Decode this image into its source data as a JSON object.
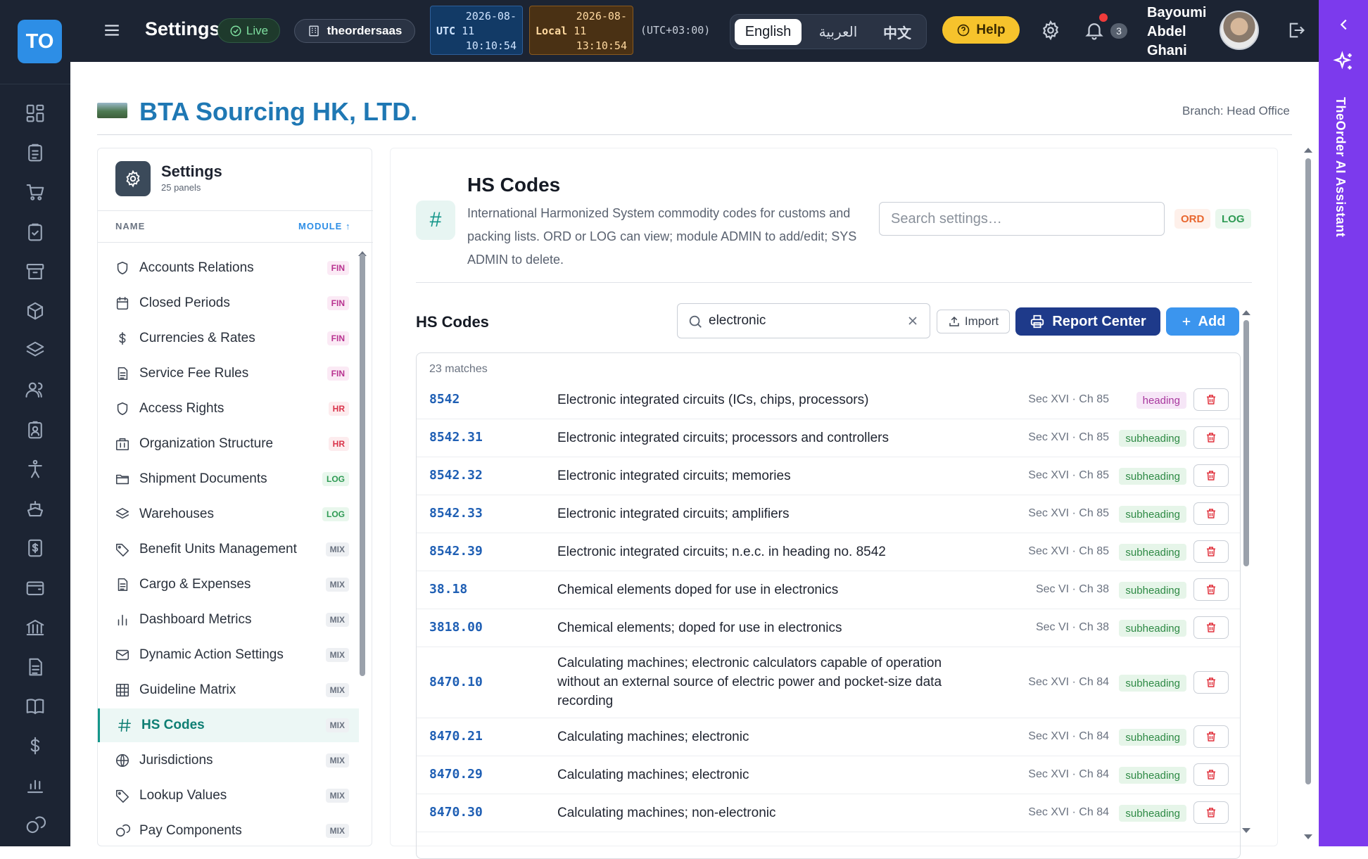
{
  "app": {
    "logo": "TO",
    "title": "Settings",
    "status": "Live",
    "tenant": "theordersaas"
  },
  "clock": {
    "utc_label": "UTC",
    "utc_date": "2026-08-",
    "utc_day": "11",
    "utc_time": "10:10:54",
    "local_label": "Local",
    "local_date": "2026-08-",
    "local_day": "11",
    "local_time": "13:10:54",
    "tz": "(UTC+03:00)"
  },
  "languages": [
    "English",
    "العربية",
    "中文"
  ],
  "help_label": "Help",
  "notifications_count": "3",
  "user": {
    "line1": "Bayoumi",
    "line2": "Abdel",
    "line3": "Ghani"
  },
  "ai_label": "TheOrder AI Assistant",
  "company": "BTA Sourcing HK, LTD.",
  "branch": "Branch: Head Office",
  "sidebar": {
    "title": "Settings",
    "subtitle": "25 panels",
    "col_name": "NAME",
    "col_module": "MODULE ↑",
    "items": [
      {
        "label": "Accounts Relations",
        "module": "FIN",
        "icon": "shield-icon"
      },
      {
        "label": "Closed Periods",
        "module": "FIN",
        "icon": "calendar-icon"
      },
      {
        "label": "Currencies & Rates",
        "module": "FIN",
        "icon": "dollar-icon"
      },
      {
        "label": "Service Fee Rules",
        "module": "FIN",
        "icon": "document-icon"
      },
      {
        "label": "Access Rights",
        "module": "HR",
        "icon": "shield-icon"
      },
      {
        "label": "Organization Structure",
        "module": "HR",
        "icon": "building-icon"
      },
      {
        "label": "Shipment Documents",
        "module": "LOG",
        "icon": "folder-icon"
      },
      {
        "label": "Warehouses",
        "module": "LOG",
        "icon": "layers-icon"
      },
      {
        "label": "Benefit Units Management",
        "module": "MIX",
        "icon": "tag-icon"
      },
      {
        "label": "Cargo & Expenses",
        "module": "MIX",
        "icon": "document-icon"
      },
      {
        "label": "Dashboard Metrics",
        "module": "MIX",
        "icon": "bar-chart-icon"
      },
      {
        "label": "Dynamic Action Settings",
        "module": "MIX",
        "icon": "mail-icon"
      },
      {
        "label": "Guideline Matrix",
        "module": "MIX",
        "icon": "grid-icon"
      },
      {
        "label": "HS Codes",
        "module": "MIX",
        "icon": "hash-icon"
      },
      {
        "label": "Jurisdictions",
        "module": "MIX",
        "icon": "globe-icon"
      },
      {
        "label": "Lookup Values",
        "module": "MIX",
        "icon": "tag-icon"
      },
      {
        "label": "Pay Components",
        "module": "MIX",
        "icon": "coins-icon"
      }
    ]
  },
  "panel": {
    "title": "HS Codes",
    "description": "International Harmonized System commodity codes for customs and packing lists. ORD or LOG can view; module ADMIN to add/edit; SYS ADMIN to delete.",
    "search_placeholder": "Search settings…",
    "modules": [
      "ORD",
      "LOG"
    ]
  },
  "list": {
    "title": "HS Codes",
    "search_value": "electronic",
    "import_label": "Import",
    "report_label": "Report Center",
    "add_label": "Add",
    "matches": "23 matches",
    "rows": [
      {
        "code": "8542",
        "desc": "Electronic integrated circuits (ICs, chips, processors)",
        "sec": "Sec XVI · Ch 85",
        "level": "heading"
      },
      {
        "code": "8542.31",
        "desc": "Electronic integrated circuits; processors and controllers",
        "sec": "Sec XVI · Ch 85",
        "level": "subheading"
      },
      {
        "code": "8542.32",
        "desc": "Electronic integrated circuits; memories",
        "sec": "Sec XVI · Ch 85",
        "level": "subheading"
      },
      {
        "code": "8542.33",
        "desc": "Electronic integrated circuits; amplifiers",
        "sec": "Sec XVI · Ch 85",
        "level": "subheading"
      },
      {
        "code": "8542.39",
        "desc": "Electronic integrated circuits; n.e.c. in heading no. 8542",
        "sec": "Sec XVI · Ch 85",
        "level": "subheading"
      },
      {
        "code": "38.18",
        "desc": "Chemical elements doped for use in electronics",
        "sec": "Sec VI · Ch 38",
        "level": "subheading"
      },
      {
        "code": "3818.00",
        "desc": "Chemical elements; doped for use in electronics",
        "sec": "Sec VI · Ch 38",
        "level": "subheading"
      },
      {
        "code": "8470.10",
        "desc": "Calculating machines; electronic calculators capable of operation without an external source of electric power and pocket-size data recording",
        "sec": "Sec XVI · Ch 84",
        "level": "subheading"
      },
      {
        "code": "8470.21",
        "desc": "Calculating machines; electronic",
        "sec": "Sec XVI · Ch 84",
        "level": "subheading"
      },
      {
        "code": "8470.29",
        "desc": "Calculating machines; electronic",
        "sec": "Sec XVI · Ch 84",
        "level": "subheading"
      },
      {
        "code": "8470.30",
        "desc": "Calculating machines; non-electronic",
        "sec": "Sec XVI · Ch 84",
        "level": "subheading"
      }
    ]
  }
}
